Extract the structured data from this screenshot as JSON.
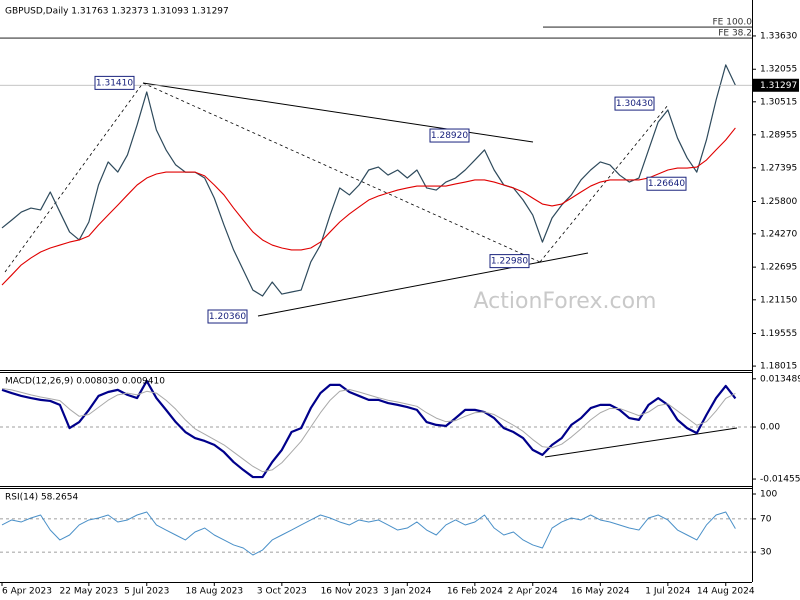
{
  "chart_data": [
    {
      "type": "line",
      "title": "GBPUSD,Daily  1.31763 1.32373 1.31093 1.31297",
      "categories": [
        "6 Apr 2023",
        null,
        null,
        null,
        null,
        null,
        null,
        null,
        null,
        "22 May 2023",
        null,
        null,
        null,
        null,
        null,
        "5 Jul 2023",
        null,
        null,
        null,
        null,
        null,
        null,
        "18 Aug 2023",
        null,
        null,
        null,
        null,
        null,
        null,
        "3 Oct 2023",
        null,
        null,
        null,
        null,
        null,
        null,
        "16 Nov 2023",
        null,
        null,
        null,
        null,
        null,
        "3 Jan 2024",
        null,
        null,
        null,
        null,
        null,
        null,
        "16 Feb 2024",
        null,
        null,
        null,
        null,
        null,
        "2 Apr 2024",
        null,
        null,
        null,
        null,
        null,
        null,
        "16 May 2024",
        null,
        null,
        null,
        null,
        null,
        null,
        "1 Jul 2024",
        null,
        null,
        null,
        null,
        null,
        "14 Aug 2024",
        null
      ],
      "series": [
        {
          "color": "#2e4a5c",
          "values": [
            1.2455,
            1.2492,
            1.253,
            1.2549,
            1.254,
            1.2625,
            1.253,
            1.2436,
            1.2398,
            1.2483,
            1.2658,
            1.2767,
            1.2719,
            1.28,
            1.2942,
            1.3098,
            1.2918,
            1.2824,
            1.2753,
            1.2719,
            1.2719,
            1.2691,
            1.2596,
            1.2469,
            1.2351,
            1.2256,
            1.2161,
            1.2133,
            1.2199,
            1.2142,
            1.2152,
            1.2161,
            1.2294,
            1.2374,
            1.2516,
            1.2644,
            1.2611,
            1.2658,
            1.2729,
            1.2743,
            1.2705,
            1.2729,
            1.2691,
            1.2729,
            1.2644,
            1.2634,
            1.2672,
            1.2691,
            1.2729,
            1.2776,
            1.2824,
            1.2729,
            1.2658,
            1.2644,
            1.2587,
            1.2516,
            1.2388,
            1.2502,
            1.2563,
            1.2611,
            1.2682,
            1.2729,
            1.2767,
            1.2753,
            1.2705,
            1.2672,
            1.2691,
            1.2824,
            1.2956,
            1.3013,
            1.288,
            1.2786,
            1.2719,
            1.2871,
            1.306,
            1.3226,
            1.313
          ]
        },
        {
          "color": "#e00000",
          "values": [
            1.2185,
            1.2232,
            1.228,
            1.2313,
            1.2341,
            1.236,
            1.2374,
            1.2388,
            1.2398,
            1.2417,
            1.2469,
            1.2516,
            1.2563,
            1.2611,
            1.2658,
            1.2691,
            1.271,
            1.2719,
            1.2719,
            1.2719,
            1.2719,
            1.2701,
            1.2658,
            1.2611,
            1.2549,
            1.2492,
            1.2436,
            1.2398,
            1.2374,
            1.236,
            1.2351,
            1.2351,
            1.236,
            1.2388,
            1.2436,
            1.2483,
            1.2521,
            1.2554,
            1.2587,
            1.2606,
            1.262,
            1.2634,
            1.2644,
            1.2653,
            1.2653,
            1.2653,
            1.2653,
            1.2663,
            1.2672,
            1.2682,
            1.2682,
            1.2672,
            1.2658,
            1.2644,
            1.2625,
            1.2596,
            1.2568,
            1.2559,
            1.2568,
            1.2596,
            1.2625,
            1.2653,
            1.2672,
            1.2682,
            1.2682,
            1.2682,
            1.2682,
            1.2691,
            1.271,
            1.2729,
            1.2738,
            1.2738,
            1.2743,
            1.2776,
            1.2824,
            1.2871,
            1.2928
          ]
        }
      ],
      "ylim": [
        1.1783,
        1.3533
      ],
      "yticks": [
        {
          "value": 1.3363,
          "label": "1.33630"
        },
        1.32055,
        1.30515,
        1.28955,
        1.27395,
        {
          "value": 1.258,
          "label": "1.25800"
        },
        {
          "value": 1.2427,
          "label": "1.24270"
        },
        1.22695,
        {
          "value": 1.2115,
          "label": "1.21150"
        },
        1.19555,
        1.18015
      ],
      "current_price": 1.31297,
      "levels": [
        {
          "label": "FE 100.0",
          "value": 1.3405
        },
        {
          "label": "FE 38.2",
          "value": 1.3353
        }
      ],
      "annotations": [
        {
          "value": 1.3141,
          "label": "1.31410"
        },
        {
          "value": 1.2036,
          "label": "1.20360"
        },
        {
          "value": 1.2892,
          "label": "1.28920"
        },
        {
          "value": 1.2298,
          "label": "1.22980"
        },
        {
          "value": 1.3043,
          "label": "1.30430"
        },
        {
          "value": 1.2664,
          "label": "1.26640"
        }
      ],
      "watermark": "ActionForex.com"
    },
    {
      "type": "line",
      "title": "MACD(12,26,9) 0.008030 0.009410",
      "series": [
        {
          "color": "#00008b",
          "values": [
            0.0104,
            0.0095,
            0.0087,
            0.0081,
            0.0076,
            0.0073,
            0.0062,
            -0.0003,
            0.0014,
            0.0048,
            0.0087,
            0.0098,
            0.0104,
            0.009,
            0.0081,
            0.0129,
            0.0081,
            0.0048,
            0.0014,
            -0.0014,
            -0.0031,
            -0.0039,
            -0.005,
            -0.007,
            -0.0098,
            -0.012,
            -0.014,
            -0.014,
            -0.0098,
            -0.0064,
            -0.0014,
            -0.0003,
            0.0053,
            0.0095,
            0.0118,
            0.0118,
            0.0098,
            0.0087,
            0.0076,
            0.0076,
            0.0067,
            0.0062,
            0.0056,
            0.0048,
            0.0014,
            0.0006,
            0.0003,
            0.0025,
            0.0048,
            0.0048,
            0.0042,
            0.0025,
            -0.0003,
            -0.0014,
            -0.0031,
            -0.0064,
            -0.0078,
            -0.005,
            -0.0031,
            0.0006,
            0.0025,
            0.0053,
            0.0062,
            0.0062,
            0.0048,
            0.0025,
            0.002,
            0.0062,
            0.0081,
            0.0062,
            0.002,
            -0.0003,
            -0.0017,
            0.0034,
            0.0081,
            0.0115,
            0.008
          ]
        },
        {
          "color": "#a9a9a9",
          "values": [
            0.0108,
            0.0104,
            0.0097,
            0.009,
            0.0084,
            0.0079,
            0.0074,
            0.005,
            0.003,
            0.0035,
            0.0055,
            0.0075,
            0.009,
            0.0095,
            0.009,
            0.01,
            0.0095,
            0.0075,
            0.005,
            0.002,
            -0.0005,
            -0.002,
            -0.0035,
            -0.005,
            -0.007,
            -0.009,
            -0.011,
            -0.0125,
            -0.012,
            -0.01,
            -0.007,
            -0.004,
            0.0,
            0.004,
            0.0075,
            0.01,
            0.0105,
            0.0098,
            0.009,
            0.0082,
            0.0075,
            0.007,
            0.0064,
            0.0058,
            0.004,
            0.0025,
            0.0015,
            0.0018,
            0.003,
            0.004,
            0.0042,
            0.0035,
            0.002,
            0.0005,
            -0.0012,
            -0.0035,
            -0.0055,
            -0.0058,
            -0.0048,
            -0.0028,
            -0.0005,
            0.002,
            0.004,
            0.0052,
            0.0052,
            0.0042,
            0.0032,
            0.0042,
            0.006,
            0.0065,
            0.0045,
            0.0025,
            0.0005,
            0.0015,
            0.0045,
            0.008,
            0.0094
          ]
        }
      ],
      "ylim": [
        -0.0165,
        0.0154
      ],
      "yticks": [
        0.013489,
        {
          "value": 0,
          "label": "0.00"
        },
        -0.014554
      ],
      "dashed_levels": [
        0
      ]
    },
    {
      "type": "line",
      "title": "RSI(14) 58.2654",
      "series": [
        {
          "color": "#4a90c8",
          "values": [
            62.7,
            68.7,
            66.3,
            71.1,
            74.7,
            56.6,
            44.6,
            50.6,
            62.7,
            68.7,
            71.1,
            74.7,
            66.3,
            68.7,
            74.7,
            78.3,
            62.7,
            56.6,
            50.6,
            44.6,
            54.2,
            59.0,
            50.6,
            44.6,
            38.6,
            34.9,
            26.5,
            32.5,
            44.6,
            50.6,
            56.6,
            62.7,
            68.7,
            74.7,
            71.1,
            66.3,
            62.7,
            68.7,
            66.3,
            68.7,
            62.7,
            56.6,
            59.0,
            66.3,
            56.6,
            50.6,
            62.7,
            68.7,
            62.7,
            66.3,
            74.7,
            59.0,
            50.6,
            54.2,
            44.6,
            38.6,
            34.9,
            59.0,
            66.3,
            71.1,
            68.7,
            74.7,
            68.7,
            66.3,
            62.7,
            59.0,
            56.6,
            71.1,
            74.7,
            68.7,
            56.6,
            50.6,
            44.6,
            62.7,
            74.7,
            78.3,
            58.3
          ]
        }
      ],
      "ylim": [
        0,
        100
      ],
      "yticks": [
        100,
        70,
        30
      ],
      "dashed_levels": [
        70,
        30
      ]
    }
  ]
}
